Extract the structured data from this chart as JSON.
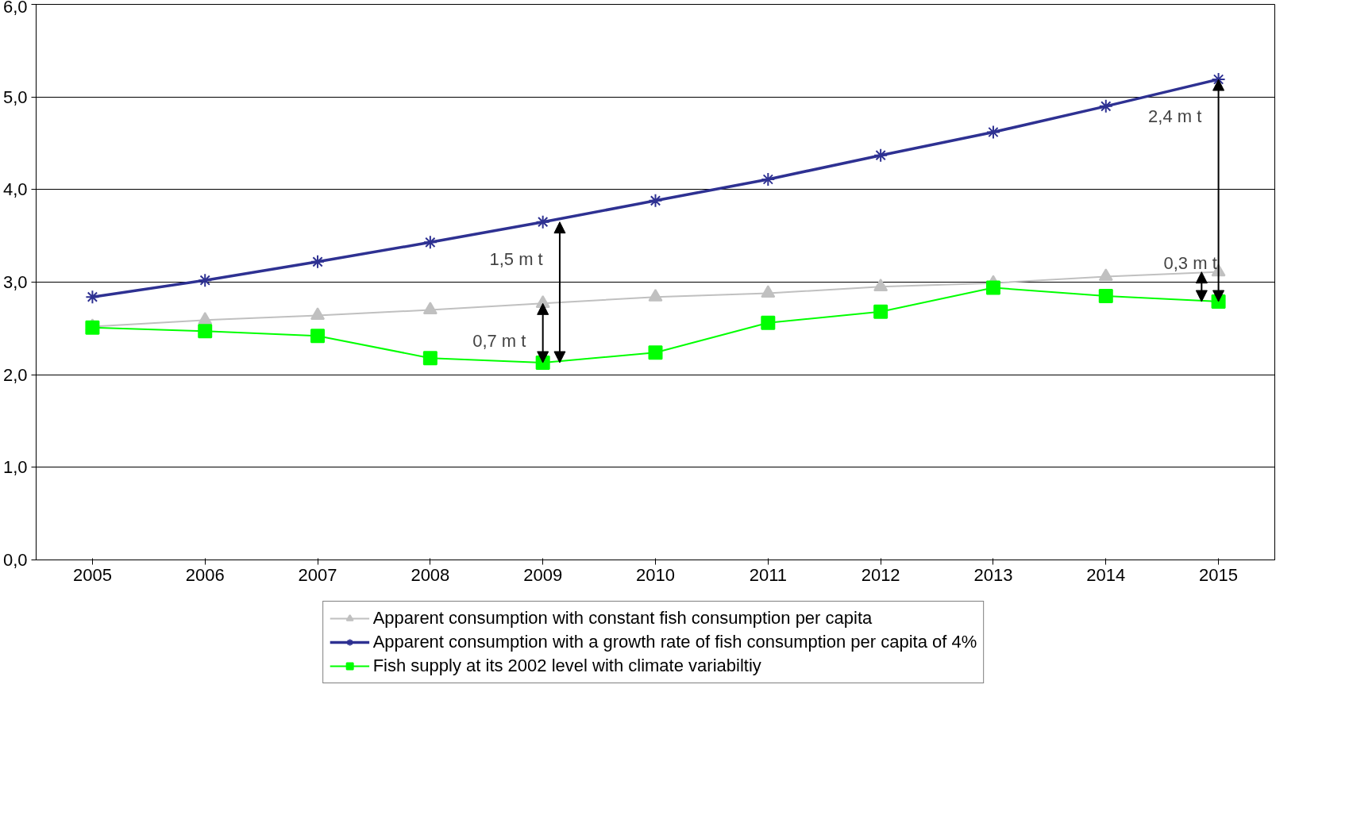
{
  "chart_data": {
    "type": "line",
    "categories": [
      "2005",
      "2006",
      "2007",
      "2008",
      "2009",
      "2010",
      "2011",
      "2012",
      "2013",
      "2014",
      "2015"
    ],
    "series": [
      {
        "name": "Apparent consumption with constant fish consumption per capita",
        "color": "#c0c0c0",
        "marker": "triangle",
        "values": [
          2.52,
          2.59,
          2.64,
          2.7,
          2.77,
          2.84,
          2.88,
          2.95,
          2.99,
          3.06,
          3.11
        ]
      },
      {
        "name": "Apparent consumption with a growth rate of fish consumption per capita of 4%",
        "color": "#2e3192",
        "marker": "cross",
        "values": [
          2.84,
          3.02,
          3.22,
          3.43,
          3.65,
          3.88,
          4.11,
          4.37,
          4.62,
          4.9,
          5.19
        ]
      },
      {
        "name": "Fish supply at its 2002 level with climate variabiltiy",
        "color": "#00ff00",
        "marker": "square",
        "values": [
          2.51,
          2.47,
          2.42,
          2.18,
          2.13,
          2.24,
          2.56,
          2.68,
          2.94,
          2.85,
          2.79
        ]
      }
    ],
    "ylim": [
      0,
      6
    ],
    "yticks": [
      {
        "value": 0,
        "label": "0,0"
      },
      {
        "value": 1,
        "label": "1,0"
      },
      {
        "value": 2,
        "label": "2,0"
      },
      {
        "value": 3,
        "label": "3,0"
      },
      {
        "value": 4,
        "label": "4,0"
      },
      {
        "value": 5,
        "label": "5,0"
      },
      {
        "value": 6,
        "label": "6,0"
      }
    ],
    "grid": "y",
    "legend": "bottom",
    "annotations": [
      {
        "text": "0,7 m t",
        "x": "2009",
        "y": 2.77
      },
      {
        "text": "1,5 m t",
        "x": "2009",
        "y": 3.65
      },
      {
        "text": "0,3 m t",
        "x": "2015",
        "y": 3.11
      },
      {
        "text": "2,4 m t",
        "x": "2015",
        "y": 5.19
      }
    ]
  }
}
